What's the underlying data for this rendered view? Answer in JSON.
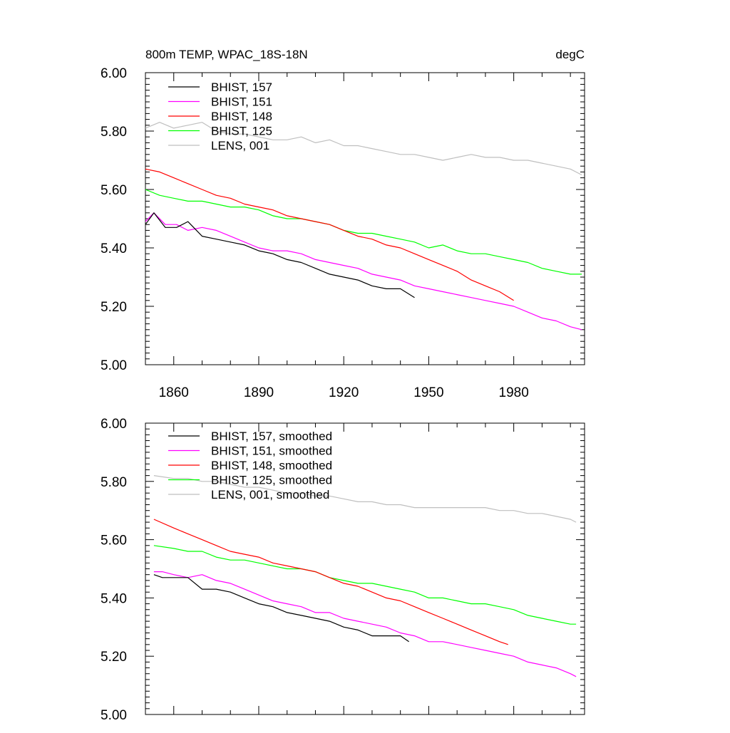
{
  "chart_data": [
    {
      "type": "line",
      "title": "800m TEMP, WPAC_18S-18N",
      "units": "degC",
      "xlabel": "",
      "ylabel": "",
      "xlim": [
        1850,
        2005
      ],
      "ylim": [
        5.0,
        6.0
      ],
      "x_ticks": [
        1860,
        1890,
        1920,
        1950,
        1980
      ],
      "y_ticks": [
        "5.00",
        "5.20",
        "5.40",
        "5.60",
        "5.80",
        "6.00"
      ],
      "legend_position": "top-left",
      "series": [
        {
          "name": "BHIST, 157",
          "color": "#000000",
          "x": [
            1850,
            1853,
            1857,
            1861,
            1865,
            1870,
            1875,
            1880,
            1885,
            1890,
            1895,
            1900,
            1905,
            1910,
            1915,
            1920,
            1925,
            1930,
            1935,
            1940,
            1945
          ],
          "y": [
            5.48,
            5.52,
            5.47,
            5.47,
            5.49,
            5.44,
            5.43,
            5.42,
            5.41,
            5.39,
            5.38,
            5.36,
            5.35,
            5.33,
            5.31,
            5.3,
            5.29,
            5.27,
            5.26,
            5.26,
            5.23
          ]
        },
        {
          "name": "BHIST, 151",
          "color": "#ff00ff",
          "x": [
            1850,
            1853,
            1857,
            1861,
            1865,
            1870,
            1875,
            1880,
            1885,
            1890,
            1895,
            1900,
            1905,
            1910,
            1915,
            1920,
            1925,
            1930,
            1935,
            1940,
            1945,
            1950,
            1955,
            1960,
            1965,
            1970,
            1975,
            1980,
            1985,
            1990,
            1995,
            2000,
            2004
          ],
          "y": [
            5.49,
            5.52,
            5.48,
            5.48,
            5.46,
            5.47,
            5.46,
            5.44,
            5.42,
            5.4,
            5.39,
            5.39,
            5.38,
            5.36,
            5.35,
            5.34,
            5.33,
            5.31,
            5.3,
            5.29,
            5.27,
            5.26,
            5.25,
            5.24,
            5.23,
            5.22,
            5.21,
            5.2,
            5.18,
            5.16,
            5.15,
            5.13,
            5.12
          ]
        },
        {
          "name": "BHIST, 148",
          "color": "#ff0000",
          "x": [
            1850,
            1855,
            1860,
            1865,
            1870,
            1875,
            1880,
            1885,
            1890,
            1895,
            1900,
            1905,
            1910,
            1915,
            1920,
            1925,
            1930,
            1935,
            1940,
            1945,
            1950,
            1955,
            1960,
            1965,
            1970,
            1975,
            1980
          ],
          "y": [
            5.67,
            5.66,
            5.64,
            5.62,
            5.6,
            5.58,
            5.57,
            5.55,
            5.54,
            5.53,
            5.51,
            5.5,
            5.49,
            5.48,
            5.46,
            5.44,
            5.43,
            5.41,
            5.4,
            5.38,
            5.36,
            5.34,
            5.32,
            5.29,
            5.27,
            5.25,
            5.22
          ]
        },
        {
          "name": "BHIST, 125",
          "color": "#00ff00",
          "x": [
            1850,
            1855,
            1860,
            1865,
            1870,
            1875,
            1880,
            1885,
            1890,
            1895,
            1900,
            1905,
            1910,
            1915,
            1920,
            1925,
            1930,
            1935,
            1940,
            1945,
            1950,
            1955,
            1960,
            1965,
            1970,
            1975,
            1980,
            1985,
            1990,
            1995,
            2000,
            2004
          ],
          "y": [
            5.6,
            5.58,
            5.57,
            5.56,
            5.56,
            5.55,
            5.54,
            5.54,
            5.53,
            5.51,
            5.5,
            5.5,
            5.49,
            5.48,
            5.46,
            5.45,
            5.45,
            5.44,
            5.43,
            5.42,
            5.4,
            5.41,
            5.39,
            5.38,
            5.38,
            5.37,
            5.36,
            5.35,
            5.33,
            5.32,
            5.31,
            5.31
          ]
        },
        {
          "name": "LENS, 001",
          "color": "#bfbfbf",
          "x": [
            1850,
            1855,
            1860,
            1865,
            1870,
            1875,
            1880,
            1885,
            1890,
            1895,
            1900,
            1905,
            1910,
            1915,
            1920,
            1925,
            1930,
            1935,
            1940,
            1945,
            1950,
            1955,
            1960,
            1965,
            1970,
            1975,
            1980,
            1985,
            1990,
            1995,
            2000,
            2004
          ],
          "y": [
            5.81,
            5.83,
            5.81,
            5.82,
            5.83,
            5.8,
            5.79,
            5.79,
            5.78,
            5.77,
            5.77,
            5.78,
            5.76,
            5.77,
            5.75,
            5.75,
            5.74,
            5.73,
            5.72,
            5.72,
            5.71,
            5.7,
            5.71,
            5.72,
            5.71,
            5.71,
            5.7,
            5.7,
            5.69,
            5.68,
            5.67,
            5.65
          ]
        }
      ]
    },
    {
      "type": "line",
      "title": "",
      "xlabel": "",
      "ylabel": "",
      "xlim": [
        1850,
        2005
      ],
      "ylim": [
        5.0,
        6.0
      ],
      "y_ticks": [
        "5.00",
        "5.20",
        "5.40",
        "5.60",
        "5.80",
        "6.00"
      ],
      "legend_position": "top-left",
      "series": [
        {
          "name": "BHIST, 157, smoothed",
          "color": "#000000",
          "x": [
            1853,
            1856,
            1860,
            1865,
            1870,
            1875,
            1880,
            1885,
            1890,
            1895,
            1900,
            1905,
            1910,
            1915,
            1920,
            1925,
            1930,
            1935,
            1940,
            1943
          ],
          "y": [
            5.48,
            5.47,
            5.47,
            5.47,
            5.43,
            5.43,
            5.42,
            5.4,
            5.38,
            5.37,
            5.35,
            5.34,
            5.33,
            5.32,
            5.3,
            5.29,
            5.27,
            5.27,
            5.27,
            5.25
          ]
        },
        {
          "name": "BHIST, 151, smoothed",
          "color": "#ff00ff",
          "x": [
            1853,
            1856,
            1860,
            1865,
            1870,
            1875,
            1880,
            1885,
            1890,
            1895,
            1900,
            1905,
            1910,
            1915,
            1920,
            1925,
            1930,
            1935,
            1940,
            1945,
            1950,
            1955,
            1960,
            1965,
            1970,
            1975,
            1980,
            1985,
            1990,
            1995,
            2000,
            2002
          ],
          "y": [
            5.49,
            5.49,
            5.48,
            5.47,
            5.48,
            5.46,
            5.45,
            5.43,
            5.41,
            5.39,
            5.38,
            5.37,
            5.35,
            5.35,
            5.33,
            5.32,
            5.31,
            5.3,
            5.28,
            5.27,
            5.25,
            5.25,
            5.24,
            5.23,
            5.22,
            5.21,
            5.2,
            5.18,
            5.17,
            5.16,
            5.14,
            5.13
          ]
        },
        {
          "name": "BHIST, 148, smoothed",
          "color": "#ff0000",
          "x": [
            1853,
            1860,
            1865,
            1870,
            1875,
            1880,
            1885,
            1890,
            1895,
            1900,
            1905,
            1910,
            1915,
            1920,
            1925,
            1930,
            1935,
            1940,
            1945,
            1950,
            1955,
            1960,
            1965,
            1970,
            1975,
            1978
          ],
          "y": [
            5.67,
            5.64,
            5.62,
            5.6,
            5.58,
            5.56,
            5.55,
            5.54,
            5.52,
            5.51,
            5.5,
            5.49,
            5.47,
            5.45,
            5.44,
            5.42,
            5.4,
            5.39,
            5.37,
            5.35,
            5.33,
            5.31,
            5.29,
            5.27,
            5.25,
            5.24
          ]
        },
        {
          "name": "BHIST, 125, smoothed",
          "color": "#00ff00",
          "x": [
            1853,
            1860,
            1865,
            1870,
            1875,
            1880,
            1885,
            1890,
            1895,
            1900,
            1905,
            1910,
            1915,
            1920,
            1925,
            1930,
            1935,
            1940,
            1945,
            1950,
            1955,
            1960,
            1965,
            1970,
            1975,
            1980,
            1985,
            1990,
            1995,
            2000,
            2002
          ],
          "y": [
            5.58,
            5.57,
            5.56,
            5.56,
            5.54,
            5.53,
            5.53,
            5.52,
            5.51,
            5.5,
            5.5,
            5.49,
            5.47,
            5.46,
            5.45,
            5.45,
            5.44,
            5.43,
            5.42,
            5.4,
            5.4,
            5.39,
            5.38,
            5.38,
            5.37,
            5.36,
            5.34,
            5.33,
            5.32,
            5.31,
            5.31
          ]
        },
        {
          "name": "LENS, 001, smoothed",
          "color": "#bfbfbf",
          "x": [
            1853,
            1860,
            1865,
            1870,
            1875,
            1880,
            1885,
            1890,
            1895,
            1900,
            1905,
            1910,
            1915,
            1920,
            1925,
            1930,
            1935,
            1940,
            1945,
            1950,
            1955,
            1960,
            1965,
            1970,
            1975,
            1980,
            1985,
            1990,
            1995,
            2000,
            2002
          ],
          "y": [
            5.82,
            5.81,
            5.81,
            5.8,
            5.8,
            5.79,
            5.78,
            5.78,
            5.77,
            5.76,
            5.76,
            5.75,
            5.75,
            5.74,
            5.73,
            5.73,
            5.72,
            5.72,
            5.71,
            5.71,
            5.71,
            5.71,
            5.71,
            5.71,
            5.7,
            5.7,
            5.69,
            5.69,
            5.68,
            5.67,
            5.66
          ]
        }
      ]
    }
  ]
}
